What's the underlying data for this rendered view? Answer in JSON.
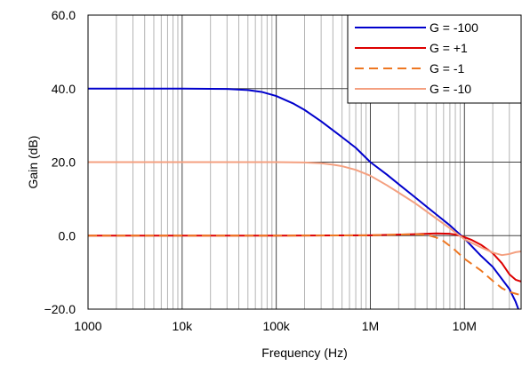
{
  "chart_data": {
    "type": "line",
    "title": "",
    "xlabel": "Frequency (Hz)",
    "ylabel": "Gain (dB)",
    "x_scale": "log",
    "xlim": [
      1000,
      40000000
    ],
    "ylim": [
      -20,
      60
    ],
    "x_ticks": [
      {
        "value": 1000,
        "label": "1000"
      },
      {
        "value": 10000,
        "label": "10k"
      },
      {
        "value": 100000,
        "label": "100k"
      },
      {
        "value": 1000000,
        "label": "1M"
      },
      {
        "value": 10000000,
        "label": "10M"
      }
    ],
    "y_ticks": [
      {
        "value": -20,
        "label": "−20.0"
      },
      {
        "value": 0,
        "label": "0.0"
      },
      {
        "value": 20,
        "label": "20.0"
      },
      {
        "value": 40,
        "label": "40.0"
      },
      {
        "value": 60,
        "label": "60.0"
      }
    ],
    "grid": true,
    "legend_position": "top-right",
    "series": [
      {
        "name": "G = -100",
        "color": "#0000cc",
        "dash": "solid",
        "points": [
          [
            1000,
            40
          ],
          [
            10000,
            40
          ],
          [
            30000,
            39.9
          ],
          [
            50000,
            39.6
          ],
          [
            70000,
            39.1
          ],
          [
            100000,
            38.0
          ],
          [
            150000,
            36.0
          ],
          [
            200000,
            34.2
          ],
          [
            300000,
            31.1
          ],
          [
            500000,
            26.8
          ],
          [
            700000,
            23.9
          ],
          [
            1000000,
            20.0
          ],
          [
            1500000,
            16.6
          ],
          [
            2000000,
            14.0
          ],
          [
            3000000,
            10.4
          ],
          [
            4000000,
            7.8
          ],
          [
            5000000,
            5.8
          ],
          [
            7000000,
            2.8
          ],
          [
            10000000,
            -0.8
          ],
          [
            15000000,
            -5.5
          ],
          [
            20000000,
            -8.5
          ],
          [
            30000000,
            -14.5
          ],
          [
            35000000,
            -18.0
          ],
          [
            40000000,
            -22.0
          ]
        ]
      },
      {
        "name": "G = +1",
        "color": "#dd0000",
        "dash": "solid",
        "points": [
          [
            1000,
            0
          ],
          [
            100000,
            0
          ],
          [
            1000000,
            0.1
          ],
          [
            3000000,
            0.4
          ],
          [
            5000000,
            0.6
          ],
          [
            7000000,
            0.5
          ],
          [
            8000000,
            0.3
          ],
          [
            10000000,
            -0.4
          ],
          [
            12000000,
            -1.2
          ],
          [
            15000000,
            -2.5
          ],
          [
            20000000,
            -4.8
          ],
          [
            25000000,
            -7.5
          ],
          [
            30000000,
            -10.5
          ],
          [
            35000000,
            -12.0
          ],
          [
            40000000,
            -12.5
          ]
        ]
      },
      {
        "name": "G = -1",
        "color": "#ee7722",
        "dash": "dashed",
        "points": [
          [
            1000,
            0
          ],
          [
            100000,
            0
          ],
          [
            1000000,
            0.1
          ],
          [
            2000000,
            0.3
          ],
          [
            3000000,
            0.4
          ],
          [
            4000000,
            0.2
          ],
          [
            5000000,
            -0.5
          ],
          [
            6000000,
            -1.5
          ],
          [
            7000000,
            -2.8
          ],
          [
            8000000,
            -4.0
          ],
          [
            10000000,
            -6.3
          ],
          [
            15000000,
            -9.5
          ],
          [
            20000000,
            -12.3
          ],
          [
            25000000,
            -14.3
          ],
          [
            30000000,
            -15.3
          ],
          [
            35000000,
            -15.8
          ],
          [
            40000000,
            -16.2
          ]
        ]
      },
      {
        "name": "G = -10",
        "color": "#f4a080",
        "dash": "solid",
        "points": [
          [
            1000,
            20
          ],
          [
            100000,
            20
          ],
          [
            200000,
            19.9
          ],
          [
            300000,
            19.7
          ],
          [
            400000,
            19.3
          ],
          [
            500000,
            18.9
          ],
          [
            700000,
            17.9
          ],
          [
            1000000,
            16.3
          ],
          [
            1500000,
            13.7
          ],
          [
            2000000,
            11.7
          ],
          [
            3000000,
            8.8
          ],
          [
            5000000,
            4.7
          ],
          [
            7000000,
            2.0
          ],
          [
            10000000,
            -1.0
          ],
          [
            15000000,
            -3.2
          ],
          [
            20000000,
            -4.6
          ],
          [
            25000000,
            -5.3
          ],
          [
            30000000,
            -5.0
          ],
          [
            35000000,
            -4.5
          ],
          [
            40000000,
            -4.3
          ]
        ]
      }
    ]
  }
}
